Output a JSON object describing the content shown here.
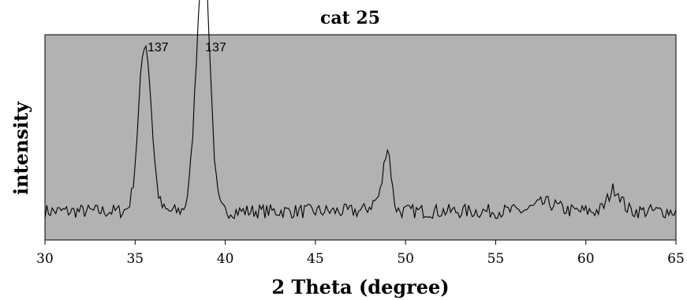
{
  "chart_data": {
    "type": "line",
    "title": "cat 25",
    "xlabel": "2 Theta (degree)",
    "ylabel": "intensity",
    "xlim": [
      30,
      65
    ],
    "ylim": [
      0,
      100
    ],
    "xticks": [
      "30",
      "35",
      "40",
      "45",
      "50",
      "55",
      "60",
      "65"
    ],
    "grid": false,
    "background": "#b2b2b2",
    "line_color": "#000000",
    "annotations": [
      {
        "text": "137",
        "x": 35.6,
        "y": 92
      },
      {
        "text": "137",
        "x": 38.8,
        "y": 92
      }
    ],
    "peaks": [
      {
        "x": 35.55,
        "height": 82,
        "width": 0.35
      },
      {
        "x": 38.6,
        "height": 74,
        "width": 0.33
      },
      {
        "x": 38.95,
        "height": 72,
        "width": 0.3
      },
      {
        "x": 49.0,
        "height": 28,
        "width": 0.2
      },
      {
        "x": 48.55,
        "height": 6,
        "width": 0.4
      },
      {
        "x": 61.6,
        "height": 11,
        "width": 0.35
      },
      {
        "x": 57.8,
        "height": 4,
        "width": 0.6
      }
    ],
    "baseline": 14,
    "noise": 3.5,
    "x_step": 0.1
  }
}
